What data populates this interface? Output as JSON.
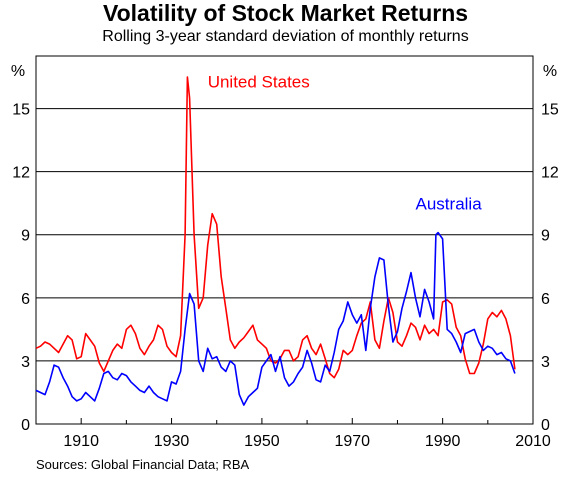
{
  "chart_data": {
    "type": "line",
    "title": "Volatility of Stock Market Returns",
    "subtitle": "Rolling 3-year standard deviation of monthly returns",
    "source": "Sources: Global Financial Data; RBA",
    "y_unit_left": "%",
    "y_unit_right": "%",
    "xlim": [
      1900,
      2010
    ],
    "ylim": [
      0,
      17.5
    ],
    "x_ticks": [
      1910,
      1930,
      1950,
      1970,
      1990,
      2010
    ],
    "x_tick_labels": [
      "1910",
      "1930",
      "1950",
      "1970",
      "1990",
      "2010"
    ],
    "y_ticks": [
      0,
      3,
      6,
      9,
      12,
      15
    ],
    "y_tick_labels": [
      "0",
      "3",
      "6",
      "9",
      "12",
      "15"
    ],
    "grid": "horizontal",
    "colors": {
      "us": "#ff0000",
      "au": "#0000ff"
    },
    "series": [
      {
        "name": "United States",
        "x": [
          1900,
          1901,
          1902,
          1903,
          1904,
          1905,
          1906,
          1907,
          1908,
          1909,
          1910,
          1911,
          1912,
          1913,
          1914,
          1915,
          1916,
          1917,
          1918,
          1919,
          1920,
          1921,
          1922,
          1923,
          1924,
          1925,
          1926,
          1927,
          1928,
          1929,
          1930,
          1931,
          1932,
          1933,
          1933.5,
          1934,
          1935,
          1936,
          1937,
          1938,
          1939,
          1940,
          1941,
          1942,
          1943,
          1944,
          1945,
          1946,
          1947,
          1948,
          1949,
          1950,
          1951,
          1952,
          1953,
          1954,
          1955,
          1956,
          1957,
          1958,
          1959,
          1960,
          1961,
          1962,
          1963,
          1964,
          1965,
          1966,
          1967,
          1968,
          1969,
          1970,
          1971,
          1972,
          1973,
          1974,
          1975,
          1976,
          1977,
          1978,
          1979,
          1980,
          1981,
          1982,
          1983,
          1984,
          1985,
          1986,
          1987,
          1988,
          1989,
          1990,
          1991,
          1992,
          1993,
          1994,
          1995,
          1996,
          1997,
          1998,
          1999,
          2000,
          2001,
          2002,
          2003,
          2004,
          2005,
          2006
        ],
        "values": [
          3.6,
          3.7,
          3.9,
          3.8,
          3.6,
          3.4,
          3.8,
          4.2,
          4.0,
          3.1,
          3.2,
          4.3,
          4.0,
          3.7,
          2.9,
          2.5,
          3.0,
          3.5,
          3.8,
          3.6,
          4.5,
          4.7,
          4.3,
          3.6,
          3.3,
          3.7,
          4.0,
          4.7,
          4.5,
          3.7,
          3.4,
          3.2,
          4.2,
          9.0,
          16.5,
          15.5,
          9.0,
          5.5,
          6.0,
          8.5,
          10.0,
          9.5,
          7.0,
          5.5,
          4.0,
          3.6,
          3.9,
          4.1,
          4.4,
          4.7,
          4.0,
          3.8,
          3.6,
          3.0,
          2.9,
          3.1,
          3.5,
          3.5,
          3.0,
          3.2,
          4.0,
          4.2,
          3.6,
          3.3,
          3.8,
          3.1,
          2.4,
          2.2,
          2.6,
          3.5,
          3.3,
          3.5,
          4.2,
          4.8,
          5.0,
          5.8,
          4.0,
          3.6,
          4.9,
          6.0,
          5.3,
          3.9,
          3.7,
          4.2,
          4.8,
          4.6,
          4.0,
          4.7,
          4.3,
          4.5,
          4.2,
          5.8,
          5.9,
          5.7,
          4.6,
          4.2,
          3.1,
          2.4,
          2.4,
          2.9,
          3.8,
          5.0,
          5.3,
          5.1,
          5.4,
          5.0,
          4.2,
          2.6
        ]
      },
      {
        "name": "Australia",
        "x": [
          1900,
          1901,
          1902,
          1903,
          1904,
          1905,
          1906,
          1907,
          1908,
          1909,
          1910,
          1911,
          1912,
          1913,
          1914,
          1915,
          1916,
          1917,
          1918,
          1919,
          1920,
          1921,
          1922,
          1923,
          1924,
          1925,
          1926,
          1927,
          1928,
          1929,
          1930,
          1931,
          1932,
          1933,
          1934,
          1935,
          1936,
          1937,
          1938,
          1939,
          1940,
          1941,
          1942,
          1943,
          1944,
          1945,
          1946,
          1947,
          1948,
          1949,
          1950,
          1951,
          1952,
          1953,
          1954,
          1955,
          1956,
          1957,
          1958,
          1959,
          1960,
          1961,
          1962,
          1963,
          1964,
          1965,
          1966,
          1967,
          1968,
          1969,
          1970,
          1971,
          1972,
          1973,
          1974,
          1975,
          1976,
          1977,
          1978,
          1979,
          1980,
          1981,
          1982,
          1983,
          1984,
          1985,
          1986,
          1987,
          1988,
          1988.5,
          1989,
          1990,
          1991,
          1992,
          1993,
          1994,
          1995,
          1996,
          1997,
          1998,
          1999,
          2000,
          2001,
          2002,
          2003,
          2004,
          2005,
          2006
        ],
        "values": [
          1.6,
          1.5,
          1.4,
          2.0,
          2.8,
          2.7,
          2.2,
          1.8,
          1.3,
          1.1,
          1.2,
          1.5,
          1.3,
          1.1,
          1.7,
          2.4,
          2.5,
          2.2,
          2.1,
          2.4,
          2.3,
          2.0,
          1.8,
          1.6,
          1.5,
          1.8,
          1.5,
          1.3,
          1.2,
          1.1,
          2.0,
          1.9,
          2.5,
          4.5,
          6.2,
          5.7,
          3.0,
          2.5,
          3.6,
          3.1,
          3.2,
          2.7,
          2.5,
          3.0,
          2.8,
          1.4,
          0.9,
          1.3,
          1.5,
          1.7,
          2.7,
          3.0,
          3.3,
          2.5,
          3.2,
          2.2,
          1.8,
          2.0,
          2.4,
          2.7,
          3.5,
          2.9,
          2.1,
          2.0,
          2.8,
          2.5,
          3.4,
          4.5,
          4.9,
          5.8,
          5.2,
          4.8,
          5.2,
          3.5,
          5.5,
          7.0,
          7.9,
          7.8,
          5.6,
          3.9,
          4.4,
          5.5,
          6.3,
          7.2,
          6.0,
          5.1,
          6.4,
          5.8,
          5.0,
          9.0,
          9.1,
          8.8,
          4.5,
          4.3,
          3.9,
          3.4,
          4.3,
          4.4,
          4.5,
          3.9,
          3.5,
          3.7,
          3.6,
          3.3,
          3.4,
          3.1,
          3.0,
          2.4
        ]
      }
    ],
    "annotations": [
      {
        "text": "United States",
        "x": 1938,
        "y": 16.0
      },
      {
        "text": "Australia",
        "x": 1984,
        "y": 10.2
      }
    ]
  }
}
